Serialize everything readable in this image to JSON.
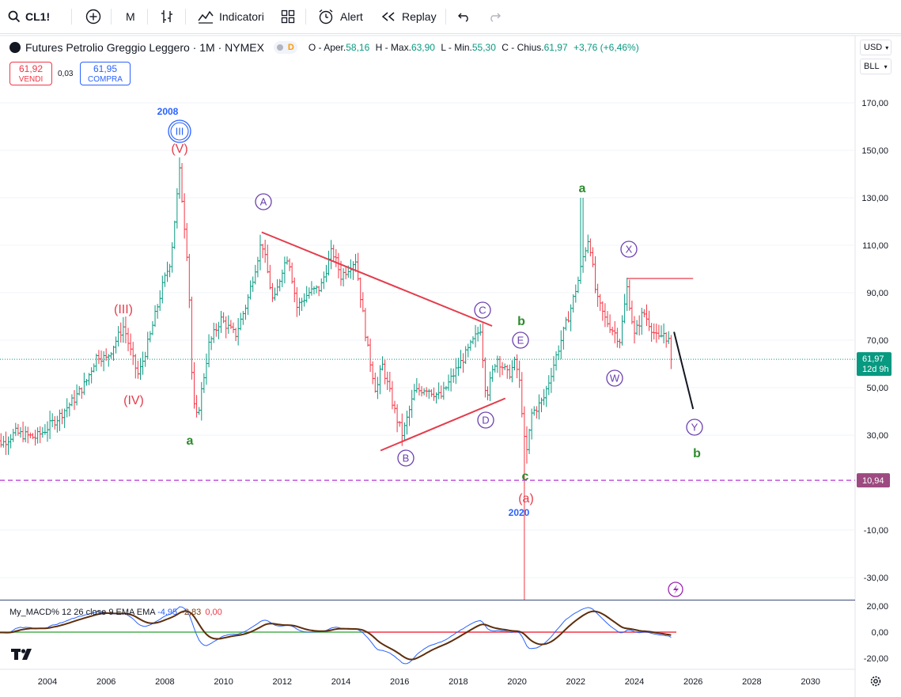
{
  "toolbar": {
    "symbol": "CL1!",
    "interval": "M",
    "indicators_label": "Indicatori",
    "alert_label": "Alert",
    "replay_label": "Replay"
  },
  "legend": {
    "title": "Futures Petrolio Greggio Leggero · 1M · NYMEX",
    "badge": "D",
    "o_label": "O - Aper.",
    "o_value": "58,16",
    "h_label": "H - Max.",
    "h_value": "63,90",
    "l_label": "L - Min.",
    "l_value": "55,30",
    "c_label": "C - Chius.",
    "c_value": "61,97",
    "change": "+3,76 (+6,46%)"
  },
  "trade": {
    "sell_price": "61,92",
    "sell_label": "VENDI",
    "spread": "0,03",
    "buy_price": "61,95",
    "buy_label": "COMPRA"
  },
  "price_axis": {
    "currency": "USD",
    "mode": "BLL",
    "ticks": [
      "170,00",
      "150,00",
      "130,00",
      "110,00",
      "90,00",
      "70,00",
      "50,00",
      "30,00",
      "-10,00",
      "-30,00"
    ],
    "last_price": "61,97",
    "countdown": "12d 9h",
    "line_price": "10,94"
  },
  "macd": {
    "label": "My_MACD% 12 26 close 9 EMA EMA",
    "v1": "-4,95",
    "v2": "-2,83",
    "v3": "0,00",
    "ticks": [
      "20,00",
      "0,00",
      "-20,00"
    ]
  },
  "time_axis": [
    "2004",
    "2006",
    "2008",
    "2010",
    "2012",
    "2014",
    "2016",
    "2018",
    "2020",
    "2022",
    "2024",
    "2026",
    "2028",
    "2030"
  ],
  "annotations": {
    "y2008": "2008",
    "III": "III",
    "V": "(V)",
    "III_red": "(III)",
    "IV": "(IV)",
    "a_low": "a",
    "A": "A",
    "B": "B",
    "C": "C",
    "D": "D",
    "E": "E",
    "b_green": "b",
    "c_green": "c",
    "a_paren": "(a)",
    "y2020": "2020",
    "a_top": "a",
    "X": "X",
    "W": "W",
    "Y": "Y",
    "b_final": "b"
  },
  "colors": {
    "up": "#089981",
    "down": "#f23645",
    "wave_red": "#e33d4c",
    "wave_green": "#2e8b2e",
    "wave_purple": "#6a3fb0",
    "wave_blue": "#2962ff",
    "dashed": "#c054d9"
  }
}
